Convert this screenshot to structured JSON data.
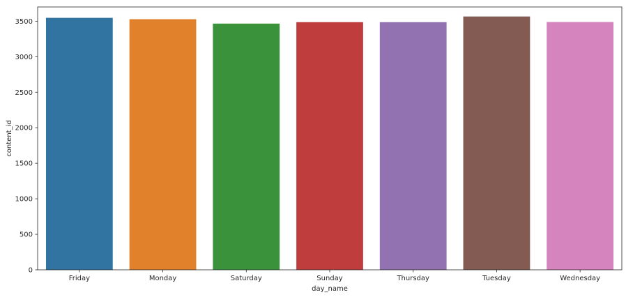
{
  "chart_data": {
    "type": "bar",
    "categories": [
      "Friday",
      "Monday",
      "Saturday",
      "Sunday",
      "Thursday",
      "Tuesday",
      "Wednesday"
    ],
    "values": [
      3547,
      3528,
      3466,
      3486,
      3486,
      3566,
      3488
    ],
    "colors": [
      "#3274a1",
      "#e1812c",
      "#3a923a",
      "#c03d3e",
      "#9372b2",
      "#845b53",
      "#d684bd"
    ],
    "xlabel": "day_name",
    "ylabel": "content_id",
    "ylim": [
      0,
      3700
    ],
    "yticks": [
      0,
      500,
      1000,
      1500,
      2000,
      2500,
      3000,
      3500
    ],
    "grid": false,
    "legend": "none"
  }
}
